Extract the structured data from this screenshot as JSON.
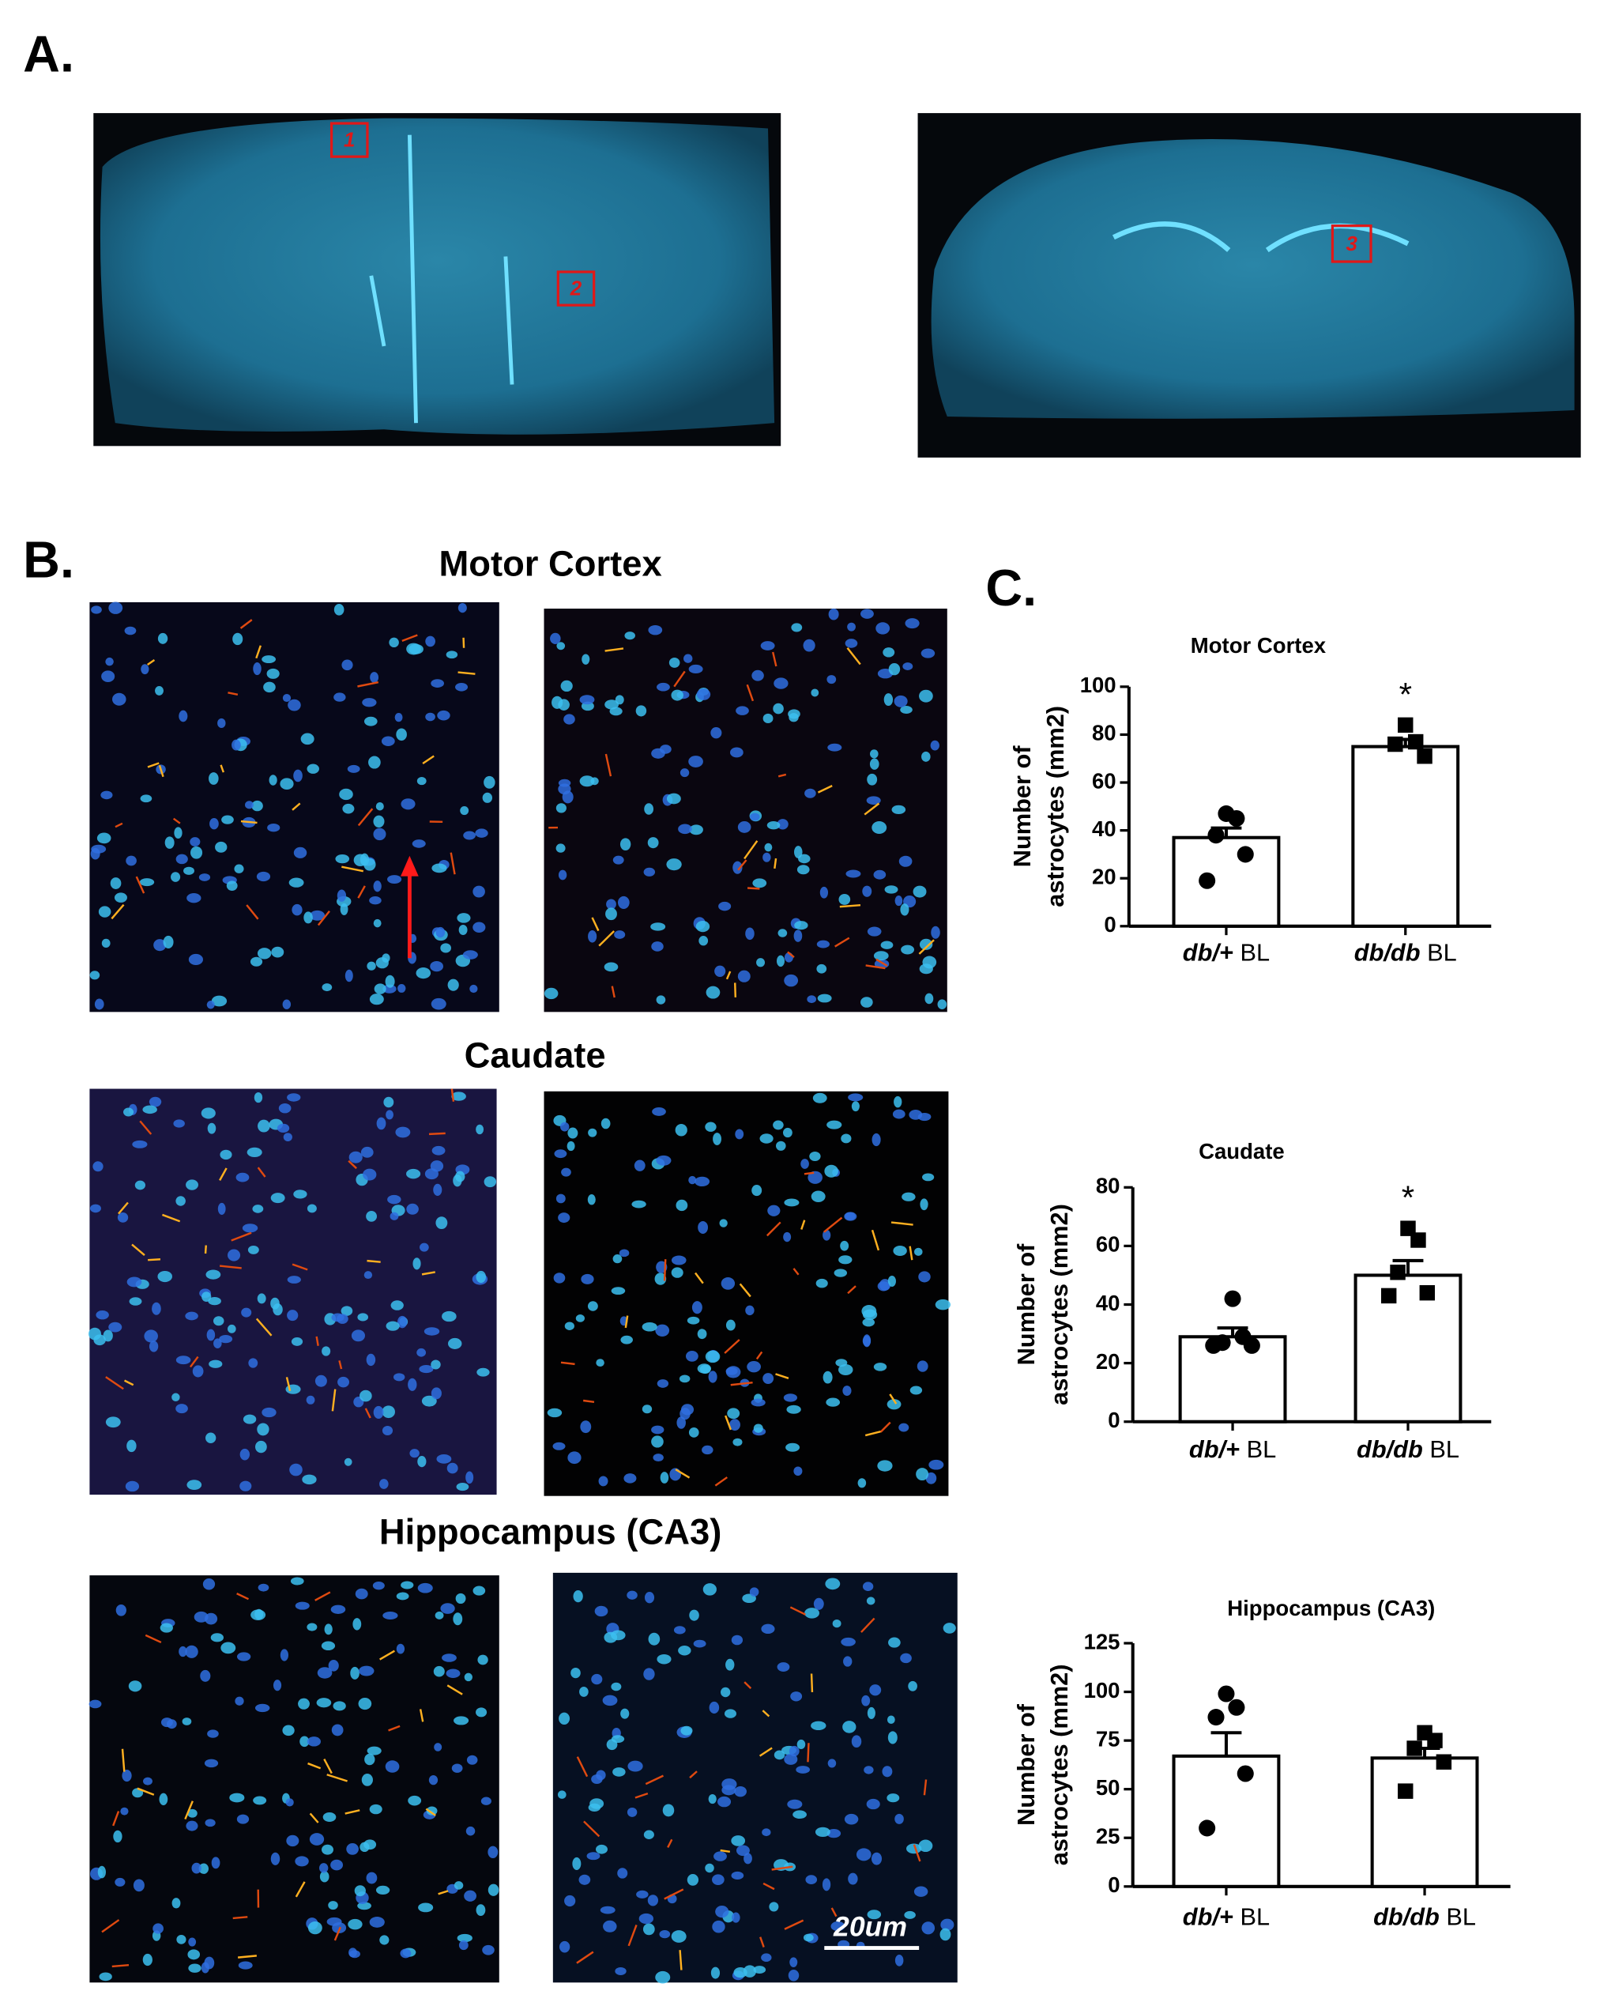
{
  "panel_labels": [
    "A.",
    "B.",
    "C."
  ],
  "panel_a": {
    "region_labels": [
      "1",
      "2",
      "3"
    ]
  },
  "panel_b": {
    "section_titles": [
      "Motor Cortex",
      "Caudate",
      "Hippocampus (CA3)"
    ],
    "scale_bar": "20um"
  },
  "chart_data": [
    {
      "type": "bar",
      "title": "Motor Cortex",
      "ylabel_lines": [
        "Number of",
        "astrocytes (mm2)"
      ],
      "categories": [
        "db/+ BL",
        "db/db BL"
      ],
      "values": [
        37,
        75
      ],
      "errors": [
        4,
        3
      ],
      "points": [
        [
          47,
          45,
          38,
          30,
          19
        ],
        [
          84,
          77,
          76,
          71
        ]
      ],
      "markers": [
        "circle",
        "square"
      ],
      "color": "#ffffff",
      "edge_color": "#000000",
      "ylim": [
        0,
        100
      ],
      "yticks": [
        0,
        20,
        40,
        60,
        80,
        100
      ],
      "annotation": {
        "text": "*",
        "category": 1
      }
    },
    {
      "type": "bar",
      "title": "Caudate",
      "ylabel_lines": [
        "Number of",
        "astrocytes (mm2)"
      ],
      "categories": [
        "db/+ BL",
        "db/db BL"
      ],
      "values": [
        29,
        50
      ],
      "errors": [
        3,
        5
      ],
      "points": [
        [
          42,
          29,
          27,
          26,
          26
        ],
        [
          66,
          62,
          51,
          44,
          43
        ]
      ],
      "markers": [
        "circle",
        "square"
      ],
      "color": "#ffffff",
      "edge_color": "#000000",
      "ylim": [
        0,
        80
      ],
      "yticks": [
        0,
        20,
        40,
        60,
        80
      ],
      "annotation": {
        "text": "*",
        "category": 1
      }
    },
    {
      "type": "bar",
      "title": "Hippocampus (CA3)",
      "ylabel_lines": [
        "Number of",
        "astrocytes (mm2)"
      ],
      "categories": [
        "db/+ BL",
        "db/db BL"
      ],
      "values": [
        67,
        66
      ],
      "errors": [
        12,
        5
      ],
      "points": [
        [
          99,
          92,
          87,
          58,
          30
        ],
        [
          79,
          75,
          71,
          64,
          49
        ]
      ],
      "markers": [
        "circle",
        "square"
      ],
      "color": "#ffffff",
      "edge_color": "#000000",
      "ylim": [
        0,
        125
      ],
      "yticks": [
        0,
        25,
        50,
        75,
        100,
        125
      ]
    }
  ]
}
